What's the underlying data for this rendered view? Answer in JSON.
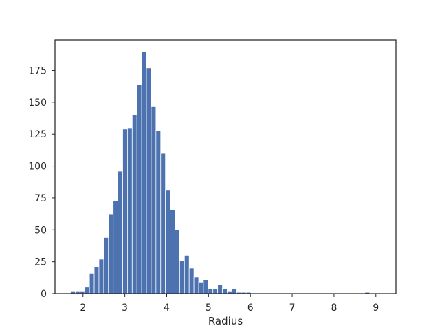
{
  "chart_data": {
    "type": "bar",
    "title": "",
    "xlabel": "Radius",
    "ylabel": "",
    "xlim": [
      1.33,
      9.48
    ],
    "ylim": [
      0,
      199
    ],
    "x_ticks": [
      2,
      3,
      4,
      5,
      6,
      7,
      8,
      9
    ],
    "y_ticks": [
      0,
      25,
      50,
      75,
      100,
      125,
      150,
      175
    ],
    "grid": false,
    "bar_color": "#4c72b0",
    "bin_start": 1.7,
    "bin_width": 0.1135,
    "counts": [
      2,
      2,
      2,
      5,
      16,
      21,
      27,
      44,
      62,
      73,
      96,
      129,
      130,
      140,
      164,
      190,
      177,
      147,
      128,
      110,
      81,
      66,
      50,
      26,
      30,
      20,
      13,
      9,
      11,
      4,
      4,
      7,
      4,
      2,
      4,
      1,
      1,
      1,
      0,
      0,
      0,
      0,
      0,
      0,
      0,
      0,
      0,
      0,
      0,
      0,
      0,
      0,
      0,
      0,
      0,
      0,
      0,
      0,
      0,
      0,
      0,
      0,
      1
    ]
  }
}
